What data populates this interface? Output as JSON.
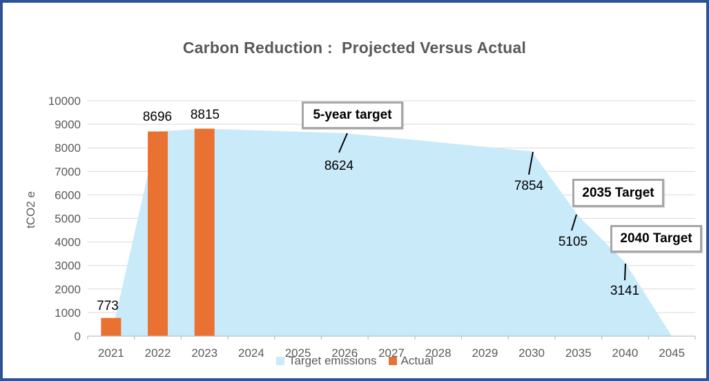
{
  "colors": {
    "frame_border": "#2E5395",
    "area_fill": "#C9EAF9",
    "bar_fill": "#E97132",
    "gridline": "#D9D9D9",
    "axis": "#BFBFBF",
    "tick_text": "#595959",
    "title_text": "#595959",
    "data_label_text": "#000000",
    "callout_border": "#A6A6A6"
  },
  "title": {
    "text": "Carbon Reduction :  Projected Versus Actual"
  },
  "chart_data": {
    "type": "combo-area-bar",
    "title": "Carbon Reduction :  Projected Versus Actual",
    "xlabel": "",
    "ylabel": "tCO2 e",
    "ylim": [
      0,
      10000
    ],
    "y_ticks": [
      0,
      1000,
      2000,
      3000,
      4000,
      5000,
      6000,
      7000,
      8000,
      9000,
      10000
    ],
    "grid": true,
    "legend_position": "bottom",
    "categories": [
      "2021",
      "2022",
      "2023",
      "2024",
      "2025",
      "2026",
      "2027",
      "2028",
      "2029",
      "2030",
      "2035",
      "2040",
      "2045"
    ],
    "series": [
      {
        "name": "Target emissions",
        "type": "area",
        "color": "#C9EAF9",
        "values": [
          0,
          8696,
          8815,
          8751,
          8688,
          8624,
          8432,
          8239,
          8047,
          7854,
          5105,
          3141,
          0
        ]
      },
      {
        "name": "Actual",
        "type": "bar",
        "color": "#E97132",
        "values": [
          773,
          8696,
          8815,
          null,
          null,
          null,
          null,
          null,
          null,
          null,
          null,
          null,
          null
        ]
      }
    ],
    "point_labels": [
      {
        "series": "Actual",
        "category": "2021",
        "text": "773"
      },
      {
        "series": "Actual",
        "category": "2022",
        "text": "8696"
      },
      {
        "series": "Actual",
        "category": "2023",
        "text": "8815"
      },
      {
        "series": "Target emissions",
        "category": "2026",
        "text": "8624"
      },
      {
        "series": "Target emissions",
        "category": "2030",
        "text": "7854"
      },
      {
        "series": "Target emissions",
        "category": "2035",
        "text": "5105"
      },
      {
        "series": "Target emissions",
        "category": "2040",
        "text": "3141"
      }
    ],
    "annotations": {
      "five_year": "5-year target",
      "t2035": "2035 Target",
      "t2040": "2040 Target"
    }
  }
}
